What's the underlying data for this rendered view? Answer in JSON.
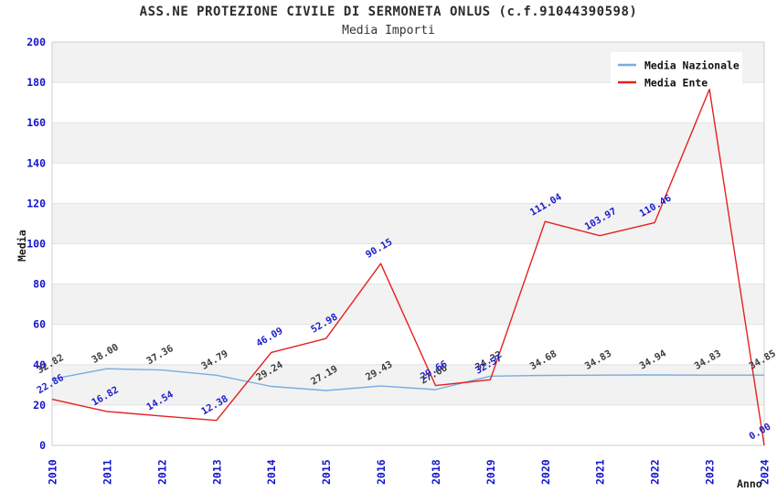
{
  "header": {
    "title": "ASS.NE PROTEZIONE CIVILE DI SERMONETA ONLUS (c.f.91044390598)",
    "subtitle": "Media Importi"
  },
  "chart_data": {
    "type": "line",
    "categories": [
      "2010",
      "2011",
      "2012",
      "2013",
      "2014",
      "2015",
      "2016",
      "2018",
      "2019",
      "2020",
      "2021",
      "2022",
      "2023",
      "2024"
    ],
    "series": [
      {
        "name": "Media Nazionale",
        "color": "#77ade0",
        "label_color": "#3c3c3c",
        "values": [
          32.82,
          38.0,
          37.36,
          34.79,
          29.24,
          27.19,
          29.43,
          27.66,
          34.32,
          34.68,
          34.83,
          34.94,
          34.83,
          34.85
        ],
        "labels": [
          "32.82",
          "38.00",
          "37.36",
          "34.79",
          "29.24",
          "27.19",
          "29.43",
          "27.66",
          "34.32",
          "34.68",
          "34.83",
          "34.94",
          "34.83",
          "34.85"
        ]
      },
      {
        "name": "Media Ente",
        "color": "#e62020",
        "label_color": "#1c1ccc",
        "values": [
          22.86,
          16.82,
          14.54,
          12.38,
          46.09,
          52.98,
          90.15,
          29.66,
          32.57,
          111.04,
          103.97,
          110.46,
          176.6,
          0.0
        ],
        "labels": [
          "22.86",
          "16.82",
          "14.54",
          "12.38",
          "46.09",
          "52.98",
          "90.15",
          "29.66",
          "32.57",
          "111.04",
          "103.97",
          "110.46",
          "",
          "0.00"
        ]
      }
    ],
    "xlabel": "Anno",
    "ylabel": "Media",
    "ylim": [
      0,
      200
    ],
    "ytick_step": 20,
    "yticks": [
      "0",
      "20",
      "40",
      "60",
      "80",
      "100",
      "120",
      "140",
      "160",
      "180",
      "200"
    ],
    "grid": true,
    "legend_position": "top-right",
    "colors": {
      "tick_label": "#1414cc",
      "axis_title": "#1a1a1a",
      "gridline": "#e3e3e3",
      "band": "#f2f2f2",
      "plot_border": "#cfcfcf",
      "legend_bg": "#ffffff"
    }
  }
}
